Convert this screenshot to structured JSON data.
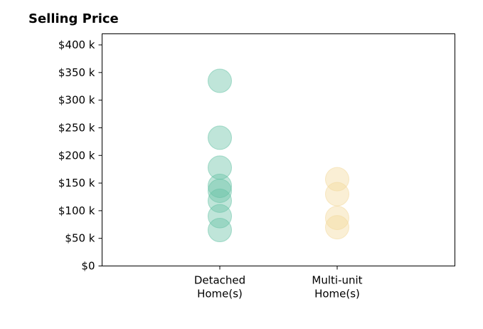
{
  "chart_data": {
    "type": "scatter",
    "title": "Selling Price",
    "xlabel": "",
    "ylabel": "",
    "ylim": [
      0,
      420000
    ],
    "y_ticks": [
      0,
      50000,
      100000,
      150000,
      200000,
      250000,
      300000,
      350000,
      400000
    ],
    "y_tick_labels": [
      "$0",
      "$50 k",
      "$100 k",
      "$150 k",
      "$200 k",
      "$250 k",
      "$300 k",
      "$350 k",
      "$400 k"
    ],
    "categories": [
      {
        "label_lines": [
          "Detached",
          "Home(s)"
        ]
      },
      {
        "label_lines": [
          "Multi-unit",
          "Home(s)"
        ]
      }
    ],
    "grid": false,
    "series": [
      {
        "category_index": 0,
        "color": "#66c2a5",
        "values": [
          335000,
          232000,
          178000,
          145000,
          136000,
          118000,
          90000,
          65000
        ]
      },
      {
        "category_index": 1,
        "color": "#f2d89c",
        "values": [
          157000,
          130000,
          87000,
          70000
        ]
      }
    ]
  }
}
